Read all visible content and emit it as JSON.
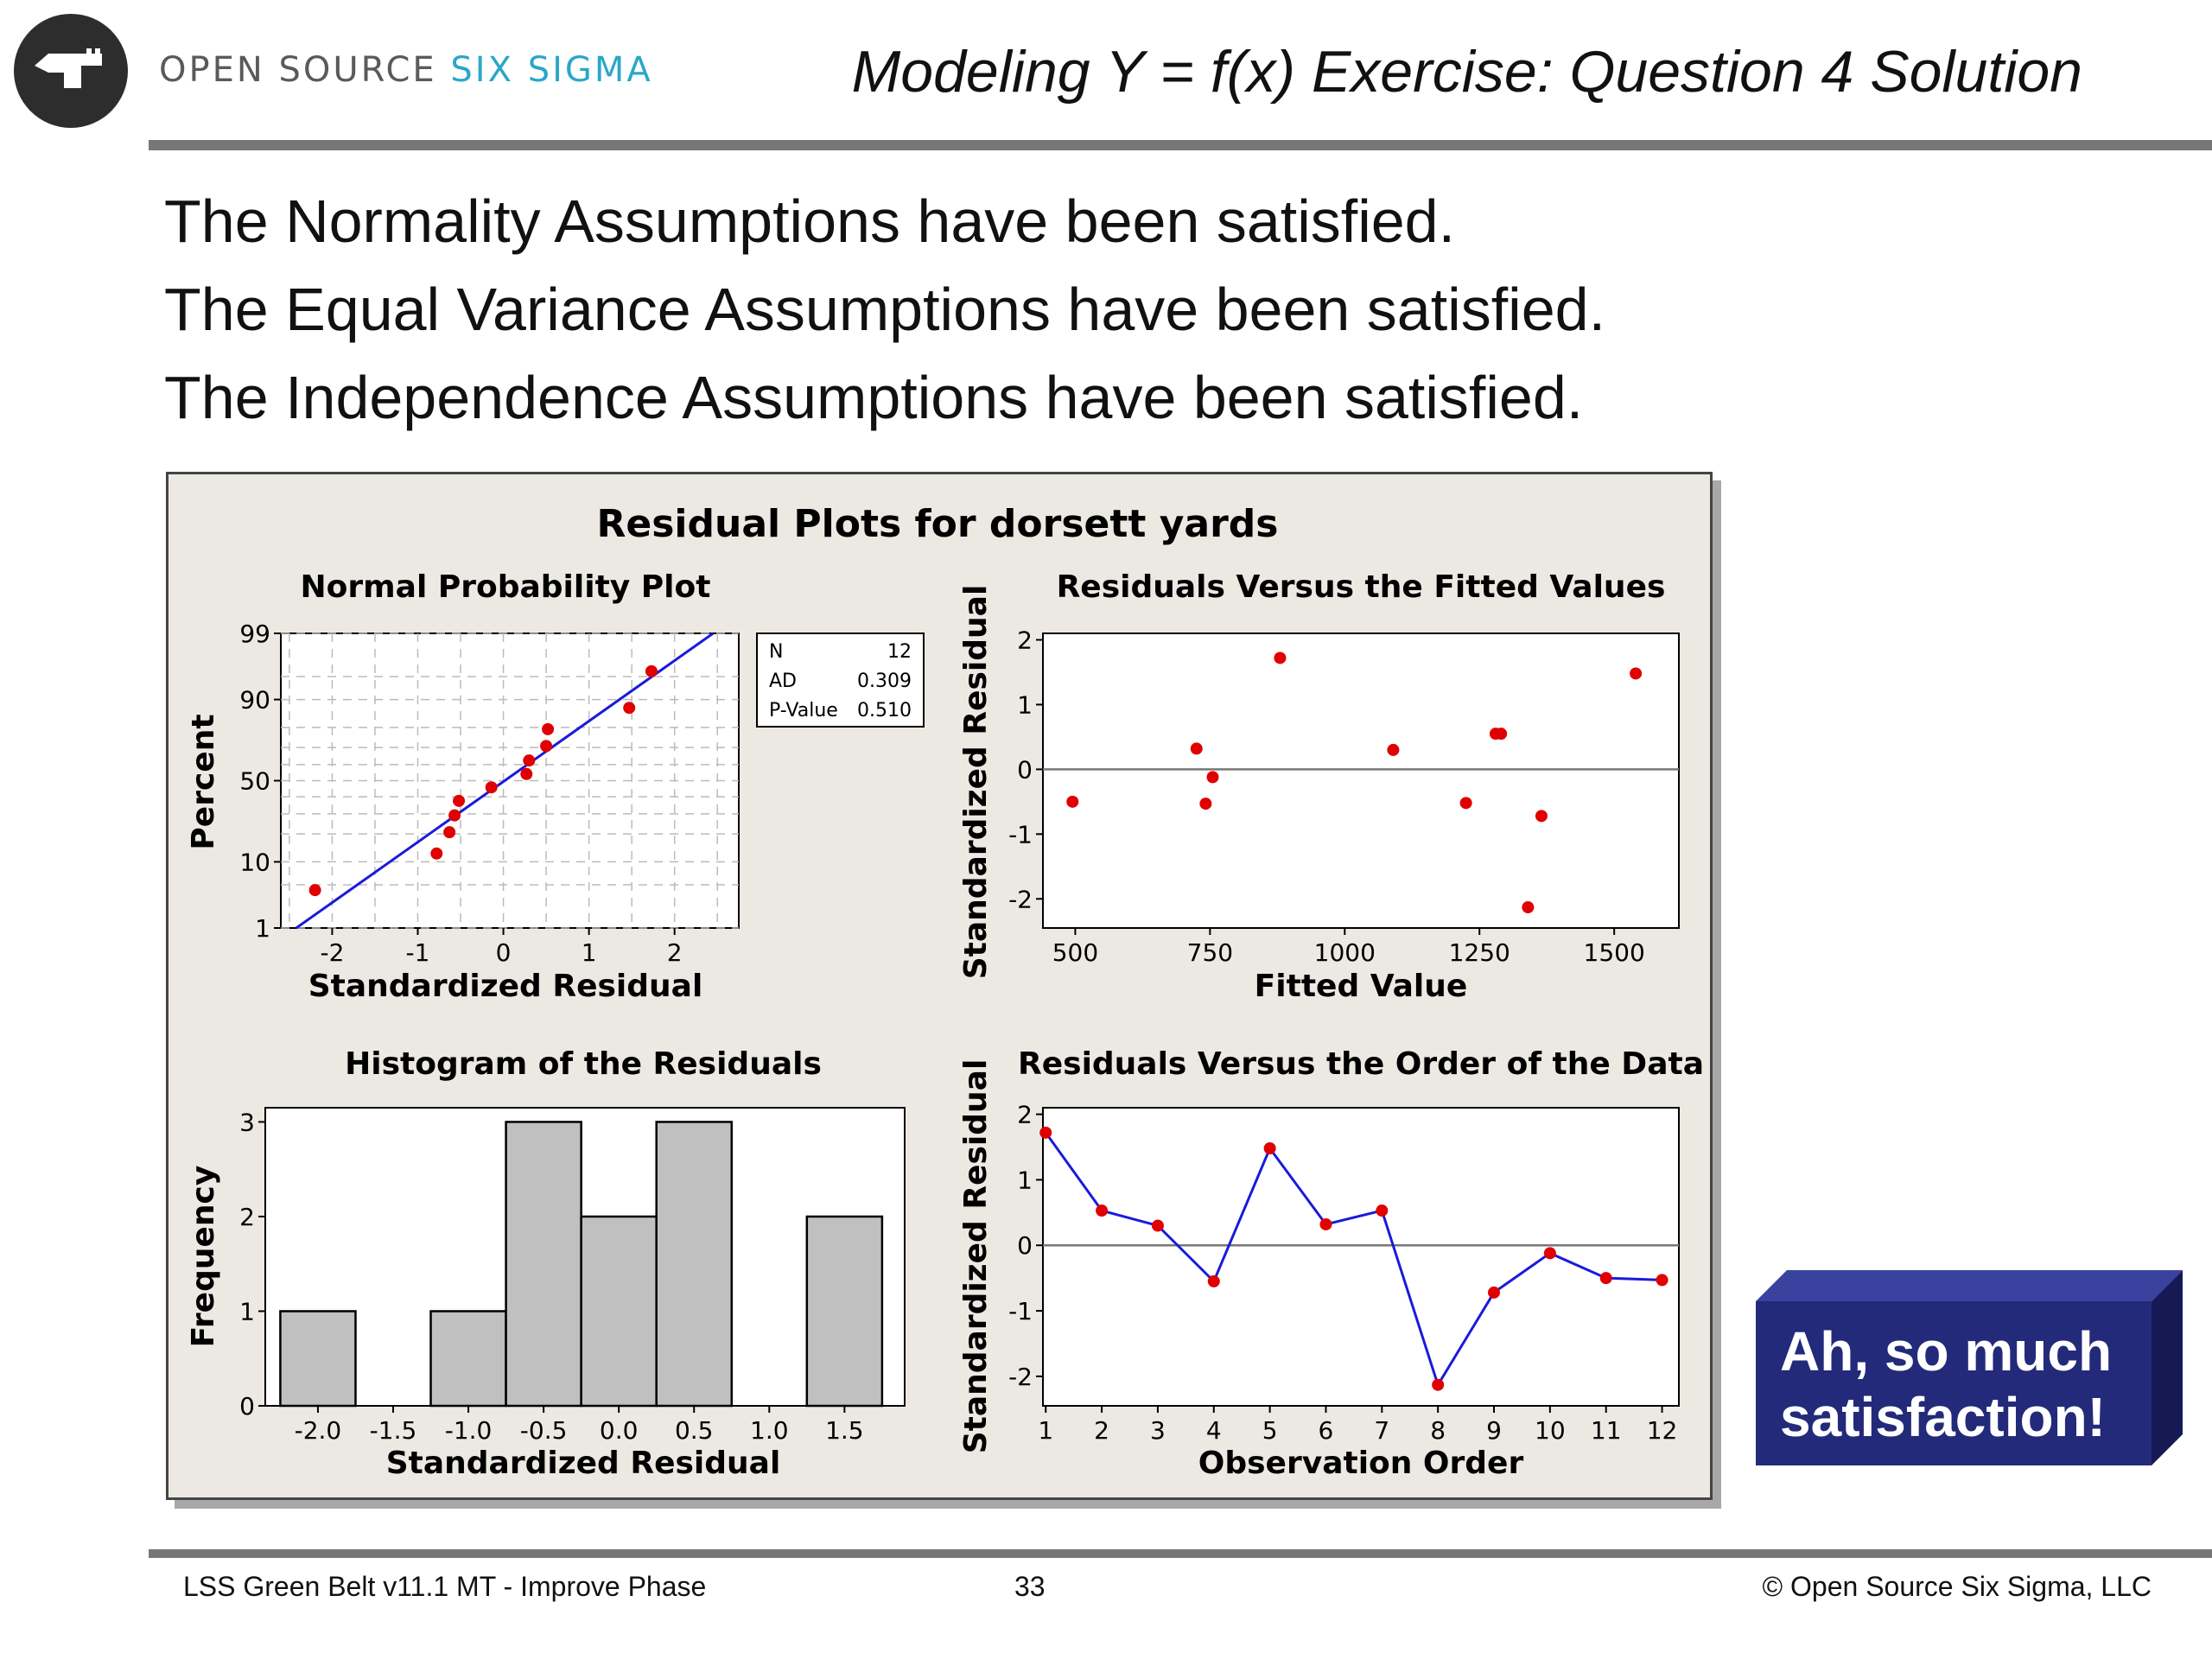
{
  "header": {
    "brand_part1": "OPEN SOURCE",
    "brand_part2": "SIX SIGMA",
    "title": "Modeling Y = f(x) Exercise: Question 4 Solution"
  },
  "statements": [
    "The Normality Assumptions have been satisfied.",
    "The Equal Variance Assumptions have been satisfied.",
    "The Independence Assumptions have been satisfied."
  ],
  "callout": {
    "line1": "Ah, so much",
    "line2": "satisfaction!"
  },
  "footer": {
    "left": "LSS Green Belt v11.1 MT - Improve Phase",
    "page": "33",
    "right": "© Open Source Six Sigma, LLC"
  },
  "colors": {
    "accent": "#2aa7c9",
    "point": "#e00000",
    "line": "#1a1adb",
    "panel": "#ece9e2",
    "callout": "#232a7a",
    "bar": "#c0c0c0"
  },
  "chart_title": "Residual Plots for dorsett yards",
  "chart_data": [
    {
      "type": "scatter",
      "title": "Normal Probability Plot",
      "xlabel": "Standardized Residual",
      "ylabel": "Percent",
      "xticks": [
        "-2",
        "-1",
        "0",
        "1",
        "2"
      ],
      "yticks": [
        "1",
        "10",
        "50",
        "90",
        "99"
      ],
      "xlim": [
        -2.6,
        2.75
      ],
      "y_scale": "normal probability",
      "grid": true,
      "legend_box": [
        [
          "N",
          "12"
        ],
        [
          "AD",
          "0.309"
        ],
        [
          "P-Value",
          "0.510"
        ]
      ],
      "points": [
        {
          "x": -2.2,
          "y": 4.2
        },
        {
          "x": -0.78,
          "y": 12.5
        },
        {
          "x": -0.63,
          "y": 20.8
        },
        {
          "x": -0.57,
          "y": 29.2
        },
        {
          "x": -0.52,
          "y": 37.5
        },
        {
          "x": -0.14,
          "y": 45.8
        },
        {
          "x": 0.27,
          "y": 54.2
        },
        {
          "x": 0.3,
          "y": 62.5
        },
        {
          "x": 0.5,
          "y": 70.8
        },
        {
          "x": 0.52,
          "y": 79.2
        },
        {
          "x": 1.47,
          "y": 87.5
        },
        {
          "x": 1.73,
          "y": 95.8
        }
      ],
      "fit_line": [
        {
          "x": -2.42,
          "y": 1
        },
        {
          "x": 2.45,
          "y": 99
        }
      ]
    },
    {
      "type": "scatter",
      "title": "Residuals Versus the Fitted Values",
      "xlabel": "Fitted Value",
      "ylabel": "Standardized Residual",
      "xticks": [
        "500",
        "750",
        "1000",
        "1250",
        "1500"
      ],
      "yticks": [
        "-2",
        "-1",
        "0",
        "1",
        "2"
      ],
      "xlim": [
        440,
        1620
      ],
      "ylim": [
        -2.45,
        2.1
      ],
      "reference_line": 0,
      "points": [
        {
          "x": 495,
          "y": -0.5
        },
        {
          "x": 725,
          "y": 0.32
        },
        {
          "x": 742,
          "y": -0.53
        },
        {
          "x": 755,
          "y": -0.12
        },
        {
          "x": 880,
          "y": 1.72
        },
        {
          "x": 1090,
          "y": 0.3
        },
        {
          "x": 1225,
          "y": -0.52
        },
        {
          "x": 1280,
          "y": 0.55
        },
        {
          "x": 1290,
          "y": 0.55
        },
        {
          "x": 1340,
          "y": -2.13
        },
        {
          "x": 1365,
          "y": -0.72
        },
        {
          "x": 1540,
          "y": 1.48
        }
      ]
    },
    {
      "type": "bar",
      "title": "Histogram of the Residuals",
      "xlabel": "Standardized Residual",
      "ylabel": "Frequency",
      "xticks": [
        "-2.0",
        "-1.5",
        "-1.0",
        "-0.5",
        "0.0",
        "0.5",
        "1.0",
        "1.5"
      ],
      "yticks": [
        "0",
        "1",
        "2",
        "3"
      ],
      "ylim": [
        0,
        3.15
      ],
      "bin_width": 0.5,
      "bins": [
        {
          "center": -2.0,
          "count": 1
        },
        {
          "center": -1.5,
          "count": 0
        },
        {
          "center": -1.0,
          "count": 1
        },
        {
          "center": -0.5,
          "count": 3
        },
        {
          "center": 0.0,
          "count": 2
        },
        {
          "center": 0.5,
          "count": 3
        },
        {
          "center": 1.0,
          "count": 0
        },
        {
          "center": 1.5,
          "count": 2
        }
      ]
    },
    {
      "type": "line",
      "title": "Residuals Versus the Order of the Data",
      "xlabel": "Observation Order",
      "ylabel": "Standardized Residual",
      "xticks": [
        "1",
        "2",
        "3",
        "4",
        "5",
        "6",
        "7",
        "8",
        "9",
        "10",
        "11",
        "12"
      ],
      "yticks": [
        "-2",
        "-1",
        "0",
        "1",
        "2"
      ],
      "ylim": [
        -2.45,
        2.1
      ],
      "reference_line": 0,
      "x": [
        1,
        2,
        3,
        4,
        5,
        6,
        7,
        8,
        9,
        10,
        11,
        12
      ],
      "y": [
        1.72,
        0.53,
        0.3,
        -0.55,
        1.48,
        0.32,
        0.53,
        -2.13,
        -0.72,
        -0.12,
        -0.5,
        -0.53
      ]
    }
  ]
}
